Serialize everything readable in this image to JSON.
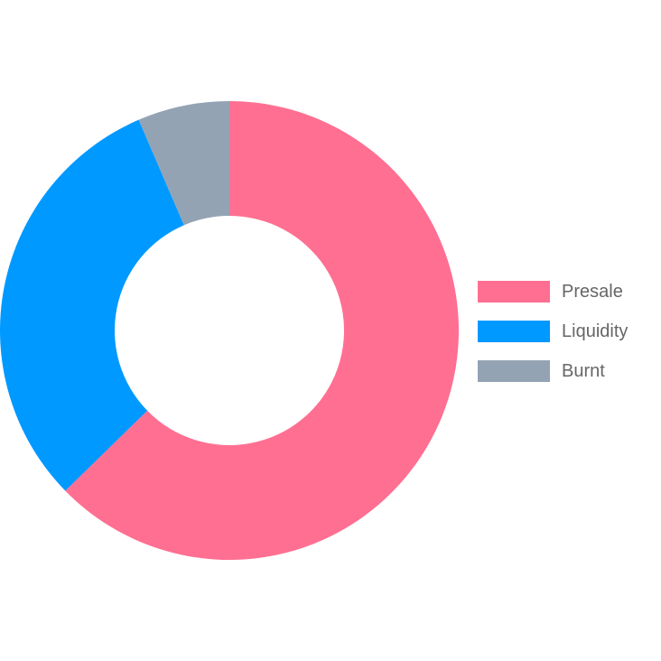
{
  "chart_data": {
    "type": "pie",
    "variant": "doughnut",
    "title": "",
    "series": [
      {
        "values": [
          63,
          31,
          6.5
        ]
      }
    ],
    "categories": [
      "Presale",
      "Liquidity",
      "Burnt"
    ],
    "colors": [
      "#ff6f91",
      "#0099ff",
      "#94a3b4"
    ],
    "legend": {
      "position": "right",
      "entries": [
        "Presale",
        "Liquidity",
        "Burnt"
      ]
    }
  }
}
